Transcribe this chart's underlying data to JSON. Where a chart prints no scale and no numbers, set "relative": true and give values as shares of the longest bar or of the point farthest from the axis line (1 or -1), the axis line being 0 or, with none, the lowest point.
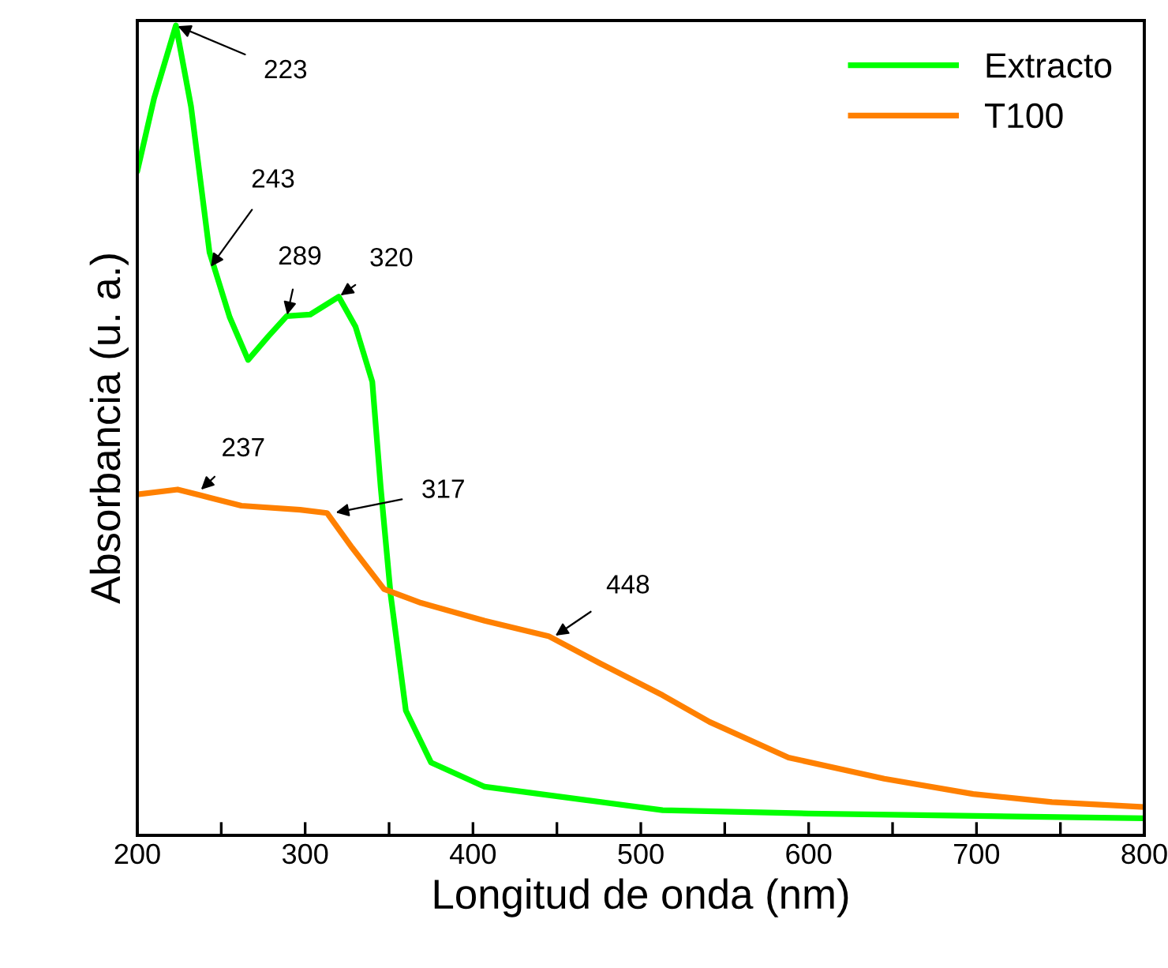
{
  "chart_data": {
    "type": "line",
    "relative": true,
    "xlabel": "Longitud de onda (nm)",
    "ylabel": "Absorbancia (u. a.)",
    "xlim": [
      200,
      800
    ],
    "xticks": [
      200,
      {
        "value": 250,
        "label": null
      },
      300,
      {
        "value": 350,
        "label": null
      },
      400,
      {
        "value": 450,
        "label": null
      },
      500,
      {
        "value": 550,
        "label": null
      },
      600,
      {
        "value": 650,
        "label": null
      },
      700,
      {
        "value": 750,
        "label": null
      },
      800
    ],
    "tick_labels": "x",
    "legend": "top right",
    "grid": false,
    "line_style": "solid",
    "marker": "none",
    "series": [
      {
        "name": "Extracto",
        "color": "#00ff00",
        "x": [
          200,
          210,
          223,
          232,
          243,
          255,
          266,
          278,
          289,
          303,
          320,
          330,
          340,
          345,
          351,
          360,
          375,
          407,
          513,
          600,
          800
        ],
        "values": [
          0.82,
          0.91,
          1.0,
          0.9,
          0.72,
          0.64,
          0.587,
          0.616,
          0.641,
          0.643,
          0.665,
          0.628,
          0.56,
          0.43,
          0.296,
          0.154,
          0.09,
          0.06,
          0.031,
          0.027,
          0.021
        ]
      },
      {
        "name": "T100",
        "color": "#ff8000",
        "x": [
          200,
          224,
          243,
          262,
          297,
          313,
          328,
          347,
          369,
          407,
          445,
          476,
          513,
          541,
          588,
          645,
          698,
          745,
          800
        ],
        "values": [
          0.421,
          0.427,
          0.417,
          0.407,
          0.402,
          0.398,
          0.355,
          0.304,
          0.287,
          0.265,
          0.246,
          0.212,
          0.173,
          0.14,
          0.096,
          0.07,
          0.051,
          0.041,
          0.035
        ]
      }
    ],
    "annotations": [
      {
        "text": "223",
        "x": 223,
        "y": 1.0
      },
      {
        "text": "243",
        "x": 243,
        "y": 0.7
      },
      {
        "text": "289",
        "x": 289,
        "y": 0.64
      },
      {
        "text": "320",
        "x": 320,
        "y": 0.665
      },
      {
        "text": "237",
        "x": 237,
        "y": 0.425
      },
      {
        "text": "317",
        "x": 317,
        "y": 0.398
      },
      {
        "text": "448",
        "x": 448,
        "y": 0.245
      }
    ]
  }
}
